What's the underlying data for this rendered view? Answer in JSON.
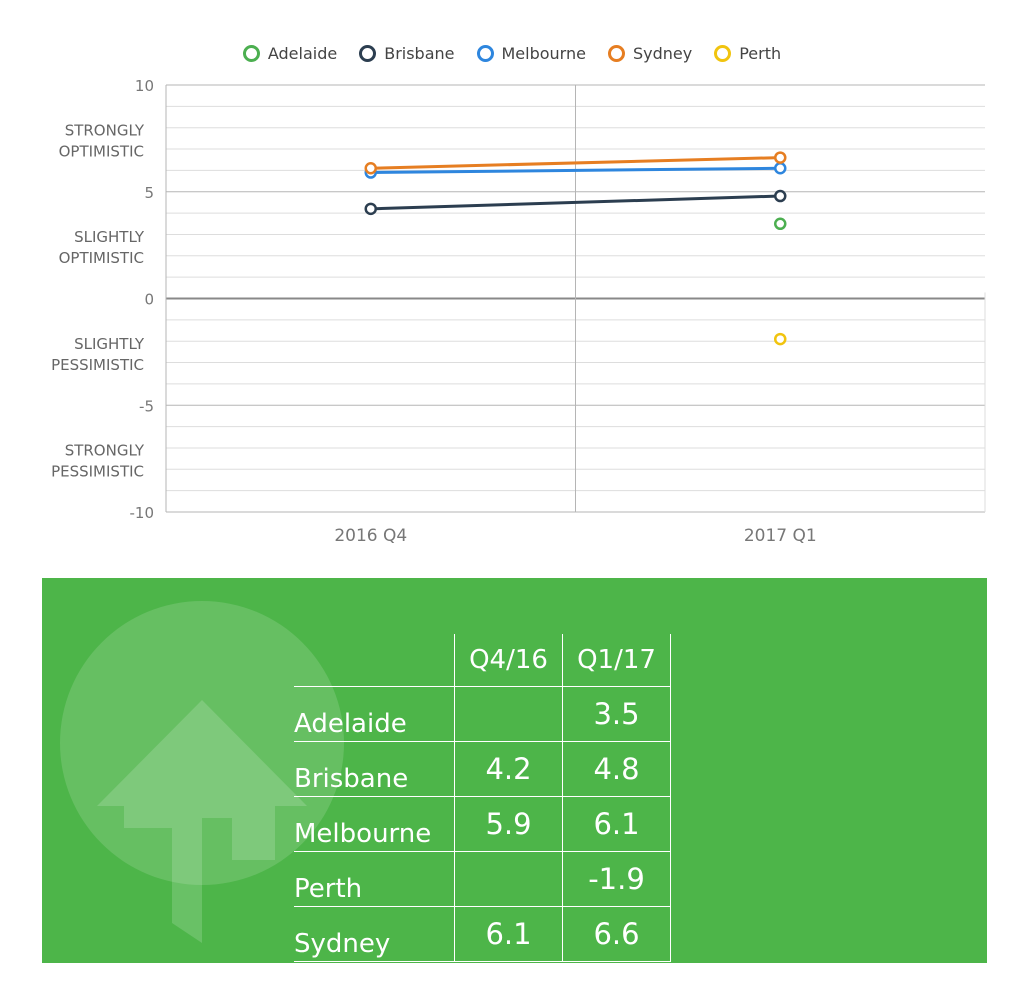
{
  "chart_data": {
    "type": "line",
    "categories": [
      "2016 Q4",
      "2017 Q1"
    ],
    "series": [
      {
        "name": "Adelaide",
        "color": "#4caf50",
        "values": [
          null,
          3.5
        ]
      },
      {
        "name": "Brisbane",
        "color": "#2c3e50",
        "values": [
          4.2,
          4.8
        ]
      },
      {
        "name": "Melbourne",
        "color": "#2e86de",
        "values": [
          5.9,
          6.1
        ]
      },
      {
        "name": "Sydney",
        "color": "#e67e22",
        "values": [
          6.1,
          6.6
        ]
      },
      {
        "name": "Perth",
        "color": "#f1c40f",
        "values": [
          null,
          -1.9
        ]
      }
    ],
    "ylim": [
      -10,
      10
    ],
    "y_ticks": [
      "10",
      "5",
      "0",
      "-5",
      "-10"
    ],
    "y_bands": [
      {
        "line1": "STRONGLY",
        "line2": "OPTIMISTIC",
        "value": 7.5
      },
      {
        "line1": "SLIGHTLY",
        "line2": "OPTIMISTIC",
        "value": 2.5
      },
      {
        "line1": "SLIGHTLY",
        "line2": "PESSIMISTIC",
        "value": -2.5
      },
      {
        "line1": "STRONGLY",
        "line2": "PESSIMISTIC",
        "value": -7.5
      }
    ],
    "legend_position": "top",
    "grid": true
  },
  "table": {
    "headers": [
      "Q4/16",
      "Q1/17"
    ],
    "rows": [
      {
        "city": "Adelaide",
        "q4": "",
        "q1": "3.5"
      },
      {
        "city": "Brisbane",
        "q4": "4.2",
        "q1": "4.8"
      },
      {
        "city": "Melbourne",
        "q4": "5.9",
        "q1": "6.1"
      },
      {
        "city": "Perth",
        "q4": "",
        "q1": "-1.9"
      },
      {
        "city": "Sydney",
        "q4": "6.1",
        "q1": "6.6"
      }
    ]
  },
  "colors": {
    "panel": "#4db549",
    "grid": "#dddddd",
    "axis": "#999999"
  }
}
